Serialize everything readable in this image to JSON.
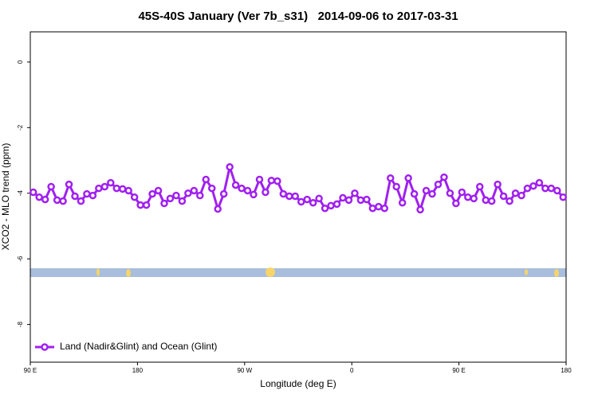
{
  "chart_data": {
    "type": "line",
    "title": "45S-40S January (Ver 7b_s31)   2014-09-06 to 2017-03-31",
    "x_label": "Longitude (deg E)",
    "y_label": "XCO2 - MLO trend (ppm)",
    "x": [
      92.5,
      97.5,
      102.5,
      107.5,
      112.5,
      117.5,
      122.5,
      127.5,
      132.5,
      137.5,
      142.5,
      147.5,
      152.5,
      157.5,
      162.5,
      167.5,
      172.5,
      177.5,
      182.5,
      187.5,
      192.5,
      197.5,
      202.5,
      207.5,
      212.5,
      217.5,
      222.5,
      227.5,
      232.5,
      237.5,
      242.5,
      247.5,
      252.5,
      257.5,
      262.5,
      267.5,
      272.5,
      277.5,
      282.5,
      287.5,
      292.5,
      297.5,
      302.5,
      307.5,
      312.5,
      317.5,
      322.5,
      327.5,
      332.5,
      337.5,
      342.5,
      347.5,
      352.5,
      357.5,
      362.5,
      367.5,
      372.5,
      377.5,
      382.5,
      387.5,
      392.5,
      397.5,
      402.5,
      407.5,
      412.5,
      417.5,
      422.5,
      427.5,
      432.5,
      437.5,
      442.5,
      447.5,
      452.5,
      457.5,
      462.5,
      467.5,
      472.5,
      477.5,
      482.5,
      487.5,
      492.5,
      497.5,
      502.5,
      507.5,
      512.5,
      517.5,
      522.5,
      527.5,
      532.5,
      537.5
    ],
    "series": [
      {
        "name": "Land (Nadir&Glint) and Ocean (Glint)",
        "color": "#a020f0",
        "values": [
          -3.97,
          -4.12,
          -4.19,
          -3.8,
          -4.21,
          -4.24,
          -3.73,
          -4.09,
          -4.24,
          -4.02,
          -4.07,
          -3.85,
          -3.8,
          -3.68,
          -3.85,
          -3.87,
          -3.92,
          -4.12,
          -4.36,
          -4.36,
          -4.02,
          -3.92,
          -4.31,
          -4.16,
          -4.07,
          -4.24,
          -4.0,
          -3.92,
          -4.07,
          -3.58,
          -3.85,
          -4.48,
          -4.02,
          -3.2,
          -3.75,
          -3.85,
          -3.92,
          -4.04,
          -3.58,
          -3.97,
          -3.61,
          -3.63,
          -4.02,
          -4.09,
          -4.09,
          -4.26,
          -4.19,
          -4.29,
          -4.16,
          -4.46,
          -4.38,
          -4.33,
          -4.14,
          -4.21,
          -4.0,
          -4.21,
          -4.19,
          -4.46,
          -4.41,
          -4.46,
          -3.54,
          -3.8,
          -4.29,
          -3.54,
          -4.02,
          -4.5,
          -3.92,
          -4.02,
          -3.73,
          -3.51,
          -4.0,
          -4.31,
          -3.97,
          -4.12,
          -4.16,
          -3.8,
          -4.21,
          -4.24,
          -3.73,
          -4.09,
          -4.24,
          -4.0,
          -4.07,
          -3.85,
          -3.78,
          -3.68,
          -3.85,
          -3.85,
          -3.92,
          -4.12
        ]
      }
    ],
    "xlim": [
      90,
      540
    ],
    "xticks": [
      {
        "value": 90,
        "label": "90 E"
      },
      180,
      {
        "value": 270,
        "label": "90 W"
      },
      {
        "value": 360,
        "label": "0"
      },
      {
        "value": 450,
        "label": "90 E"
      },
      {
        "value": 540,
        "label": "180"
      }
    ],
    "ylim": [
      -9.15,
      0.92
    ],
    "yticks": [
      0,
      -2,
      -4,
      -6,
      -8
    ],
    "legend": "bottom-left"
  }
}
